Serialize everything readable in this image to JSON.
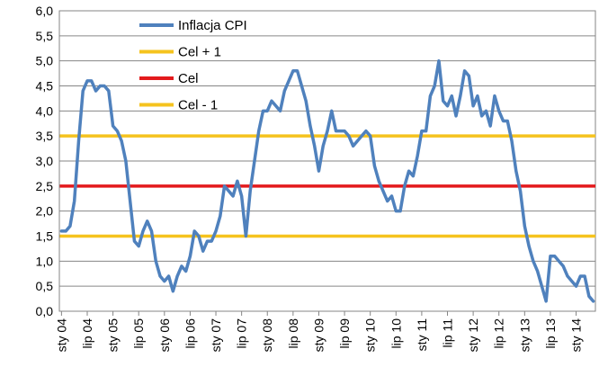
{
  "chart_data": {
    "type": "line",
    "title": "",
    "xlabel": "",
    "ylabel": "",
    "ylim": [
      0,
      6
    ],
    "yticks": [
      "0,0",
      "0,5",
      "1,0",
      "1,5",
      "2,0",
      "2,5",
      "3,0",
      "3,5",
      "4,0",
      "4,5",
      "5,0",
      "5,5",
      "6,0"
    ],
    "xticks": [
      "sty 04",
      "lip 04",
      "sty 05",
      "lip 05",
      "sty 06",
      "lip 06",
      "sty 07",
      "lip 07",
      "sty 08",
      "lip 08",
      "sty 09",
      "lip 09",
      "sty 10",
      "lip 10",
      "sty 11",
      "lip 11",
      "sty 12",
      "lip 12",
      "sty 13",
      "lip 13",
      "sty 14"
    ],
    "grid": "horizontal",
    "legend_position": "top-left",
    "series": [
      {
        "name": "Inflacja CPI",
        "color": "#4F81BD",
        "values": [
          1.6,
          1.6,
          1.7,
          2.2,
          3.4,
          4.4,
          4.6,
          4.6,
          4.4,
          4.5,
          4.5,
          4.4,
          3.7,
          3.6,
          3.4,
          3.0,
          2.2,
          1.4,
          1.3,
          1.6,
          1.8,
          1.6,
          1.0,
          0.7,
          0.6,
          0.7,
          0.4,
          0.7,
          0.9,
          0.8,
          1.1,
          1.6,
          1.5,
          1.2,
          1.4,
          1.4,
          1.6,
          1.9,
          2.5,
          2.4,
          2.3,
          2.6,
          2.3,
          1.5,
          2.4,
          3.0,
          3.6,
          4.0,
          4.0,
          4.2,
          4.1,
          4.0,
          4.4,
          4.6,
          4.8,
          4.8,
          4.5,
          4.2,
          3.7,
          3.3,
          2.8,
          3.3,
          3.6,
          4.0,
          3.6,
          3.6,
          3.6,
          3.5,
          3.3,
          3.4,
          3.5,
          3.6,
          3.5,
          2.9,
          2.6,
          2.4,
          2.2,
          2.3,
          2.0,
          2.0,
          2.5,
          2.8,
          2.7,
          3.1,
          3.6,
          3.6,
          4.3,
          4.5,
          5.0,
          4.2,
          4.1,
          4.3,
          3.9,
          4.3,
          4.8,
          4.7,
          4.1,
          4.3,
          3.9,
          4.0,
          3.7,
          4.3,
          4.0,
          3.8,
          3.8,
          3.4,
          2.8,
          2.4,
          1.7,
          1.3,
          1.0,
          0.8,
          0.5,
          0.2,
          1.1,
          1.1,
          1.0,
          0.9,
          0.7,
          0.6,
          0.5,
          0.7,
          0.7,
          0.3,
          0.2
        ]
      },
      {
        "name": "Cel + 1",
        "color": "#F5C31E",
        "values": [
          3.5,
          3.5
        ]
      },
      {
        "name": "Cel",
        "color": "#E31A1C",
        "values": [
          2.5,
          2.5
        ]
      },
      {
        "name": "Cel - 1",
        "color": "#F5C31E",
        "values": [
          1.5,
          1.5
        ]
      }
    ]
  }
}
